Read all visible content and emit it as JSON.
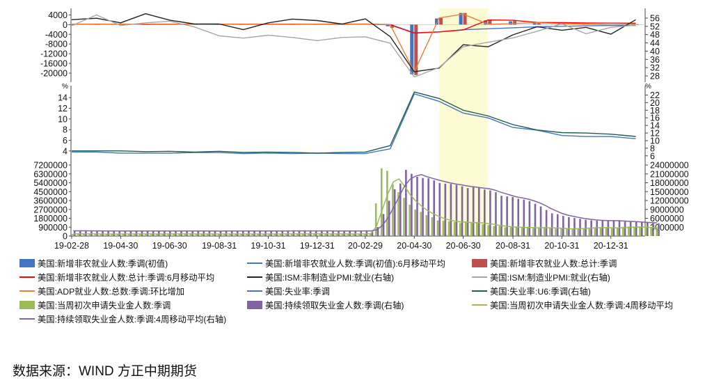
{
  "chart_data": {
    "type": "combo",
    "x_dates": [
      "19-02-28",
      "19-03-31",
      "19-04-30",
      "19-05-31",
      "19-06-30",
      "19-07-31",
      "19-08-31",
      "19-09-30",
      "19-10-31",
      "19-11-30",
      "19-12-31",
      "20-01-31",
      "20-02-29",
      "20-03-31",
      "20-04-30",
      "20-05-31",
      "20-06-30",
      "20-07-31",
      "20-08-31",
      "20-09-30",
      "20-10-31",
      "20-11-30",
      "20-12-31",
      "21-01-31"
    ],
    "x_tick_labels": [
      "19-02-28",
      "19-04-30",
      "19-06-30",
      "19-08-31",
      "19-10-31",
      "19-12-31",
      "20-02-29",
      "20-04-30",
      "20-06-30",
      "20-08-31",
      "20-10-31",
      "20-12-31"
    ],
    "shaded_period": [
      "20-05-31",
      "20-07-31"
    ],
    "panel1": {
      "left_ticks": [
        "4000",
        "0",
        "-4000",
        "-8000",
        "-12000",
        "-16000",
        "-20000"
      ],
      "right_ticks": [
        "56",
        "52",
        "48",
        "44",
        "40",
        "36",
        "32",
        "28"
      ],
      "left_range": [
        -22000,
        4400
      ],
      "right_range": [
        27,
        58
      ],
      "series": [
        {
          "name": "美国:新增非农就业人数:季调(初值)",
          "type": "bar",
          "axis": "left",
          "color": "#4472c4",
          "values": [
            20,
            196,
            263,
            75,
            224,
            164,
            130,
            136,
            128,
            266,
            145,
            225,
            273,
            -701,
            -20500,
            2509,
            4800,
            1763,
            1371,
            661,
            638,
            245,
            -140,
            49
          ]
        },
        {
          "name": "美国:新增非农就业人数:总计:季调",
          "type": "bar",
          "axis": "left",
          "color": "#c0504d",
          "values": [
            1,
            147,
            216,
            62,
            178,
            194,
            168,
            180,
            156,
            256,
            184,
            214,
            251,
            -1373,
            -20787,
            2725,
            4781,
            1761,
            1489,
            672,
            610,
            336,
            -227,
            166
          ]
        },
        {
          "name": "美国:新增非农就业人数:季调(初值):6月移动平均",
          "type": "line",
          "axis": "left",
          "color": "#4472c4",
          "values": [
            185,
            170,
            162,
            150,
            160,
            155,
            165,
            160,
            158,
            172,
            170,
            175,
            200,
            40,
            -3400,
            -3000,
            -2100,
            -1700,
            -1300,
            -900,
            -700,
            -500,
            -400,
            -350
          ]
        },
        {
          "name": "美国:新增非农就业人数:总计:季调:6月移动平均",
          "type": "line",
          "axis": "left",
          "color": "#ff0000",
          "values": [
            190,
            180,
            170,
            160,
            165,
            160,
            170,
            165,
            160,
            175,
            180,
            182,
            205,
            -110,
            -3500,
            -3000,
            -2200,
            1900,
            1780,
            900,
            800,
            700,
            600,
            580
          ]
        },
        {
          "name": "美国:ADP就业人数:总数:季调:环比增加",
          "type": "line",
          "axis": "left",
          "color": "#ed7d31",
          "values": [
            183,
            129,
            275,
            27,
            102,
            156,
            195,
            135,
            125,
            67,
            202,
            291,
            183,
            -27,
            -19500,
            2760,
            4314,
            167,
            428,
            749,
            365,
            307,
            -123,
            174
          ]
        },
        {
          "name": "美国:ISM:非制造业PMI:就业(右轴)",
          "type": "line",
          "axis": "right",
          "color": "#222222",
          "values": [
            55.2,
            55.9,
            53.7,
            58.1,
            55.0,
            53.1,
            53.1,
            50.4,
            53.7,
            55.5,
            54.8,
            53.1,
            55.6,
            47.0,
            30.0,
            31.8,
            43.1,
            42.1,
            47.9,
            51.8,
            50.1,
            51.5,
            48.2,
            55.2
          ]
        },
        {
          "name": "美国:ISM:制造业PMI:就业(右轴)",
          "type": "line",
          "axis": "right",
          "color": "#a5a5a5",
          "values": [
            52.3,
            57.5,
            52.4,
            53.7,
            54.5,
            51.7,
            47.4,
            46.3,
            47.7,
            46.6,
            45.1,
            46.6,
            46.9,
            43.8,
            27.5,
            32.1,
            42.1,
            44.3,
            46.4,
            49.6,
            53.2,
            48.4,
            51.5,
            52.6
          ]
        }
      ]
    },
    "panel2": {
      "left_unit": "%",
      "right_unit": "%",
      "left_ticks": [
        "14",
        "12",
        "10",
        "8",
        "6",
        "4"
      ],
      "right_ticks": [
        "22",
        "20",
        "18",
        "16",
        "14",
        "12",
        "10",
        "8",
        "6"
      ],
      "left_range": [
        2.8,
        15.2
      ],
      "right_range": [
        5.6,
        23.0
      ],
      "series": [
        {
          "name": "美国:失业率:季调",
          "type": "line",
          "axis": "left",
          "color": "#4472c4",
          "values": [
            3.8,
            3.8,
            3.6,
            3.6,
            3.6,
            3.7,
            3.7,
            3.5,
            3.6,
            3.5,
            3.6,
            3.5,
            3.5,
            4.4,
            14.7,
            13.3,
            11.1,
            10.2,
            8.4,
            7.9,
            6.9,
            6.7,
            6.7,
            6.3
          ]
        },
        {
          "name": "美国:失业率:U6:季调(右轴)",
          "type": "line",
          "axis": "right",
          "color": "#1f5c52",
          "values": [
            7.3,
            7.3,
            7.3,
            7.1,
            7.2,
            7.0,
            7.2,
            6.9,
            7.0,
            6.9,
            6.7,
            6.9,
            7.0,
            8.7,
            22.8,
            21.1,
            18.0,
            16.5,
            14.2,
            12.8,
            12.1,
            12.0,
            11.7,
            11.1
          ]
        }
      ]
    },
    "panel3": {
      "left_ticks": [
        "7200000",
        "6300000",
        "5400000",
        "4500000",
        "3600000",
        "2700000",
        "1800000",
        "900000",
        "0"
      ],
      "right_ticks": [
        "24000000",
        "21000000",
        "18000000",
        "15000000",
        "12000000",
        "9000000",
        "6000000",
        "3000000"
      ],
      "left_range": [
        0,
        7200000
      ],
      "right_range": [
        0,
        24000000
      ],
      "series": [
        {
          "name": "美国:当周初次申请失业金人数:季调",
          "type": "bar",
          "axis": "left",
          "color": "#9bbb59"
        },
        {
          "name": "美国:持续领取失业金人数:季调(右轴)",
          "type": "bar",
          "axis": "right",
          "color": "#8064a2"
        },
        {
          "name": "美国:当周初次申请失业金人数:季调:4周移动平均",
          "type": "line",
          "axis": "left",
          "color": "#9bbb59"
        },
        {
          "name": "美国:持续领取失业金人数:季调:4周移动平均(右轴)",
          "type": "line",
          "axis": "right",
          "color": "#7f62a9"
        }
      ],
      "weekly_initial_claims": [
        220000,
        225000,
        215000,
        212000,
        211000,
        208000,
        200000,
        205000,
        214000,
        221000,
        218000,
        226000,
        215000,
        209000,
        212000,
        215000,
        216000,
        222000,
        218000,
        221000,
        216000,
        209000,
        212000,
        211000,
        215000,
        213000,
        219000,
        211000,
        214000,
        211000,
        208000,
        205000,
        212000,
        214000,
        217000,
        213000,
        209000,
        218000,
        223000,
        221000,
        216000,
        226000,
        233000,
        230000,
        219000,
        214000,
        221000,
        216000,
        211000,
        206000,
        216000,
        219000,
        230000,
        282000,
        3307000,
        6867000,
        6615000,
        5237000,
        4442000,
        3867000,
        3176000,
        2687000,
        2446000,
        2126000,
        1897000,
        1566000,
        1542000,
        1482000,
        1427000,
        1314000,
        1413000,
        1307000,
        1422000,
        1191000,
        1106000,
        1006000,
        1011000,
        884000,
        893000,
        881000,
        860000,
        866000,
        804000,
        837000,
        898000,
        787000,
        751000,
        742000,
        711000,
        748000,
        778000,
        787000,
        853000,
        892000,
        885000,
        803000,
        787000,
        842000,
        926000,
        965000,
        900000,
        914000,
        847000,
        812000,
        779000
      ],
      "continuing_claims": [
        1770000,
        1750000,
        1760000,
        1740000,
        1730000,
        1720000,
        1700000,
        1690000,
        1700000,
        1720000,
        1710000,
        1700000,
        1690000,
        1700000,
        1690000,
        1680000,
        1700000,
        1710000,
        1700000,
        1690000,
        1680000,
        1690000,
        1700000,
        1680000,
        1670000,
        1680000,
        1690000,
        1700000,
        1700000,
        1710000,
        1690000,
        1680000,
        1690000,
        1700000,
        1720000,
        1730000,
        1720000,
        1710000,
        1740000,
        1750000,
        1730000,
        1720000,
        1750000,
        1740000,
        1730000,
        1720000,
        1730000,
        1720000,
        1710000,
        1720000,
        1730000,
        1720000,
        1750000,
        1780000,
        3029000,
        7446000,
        11914000,
        15819000,
        17756000,
        22377000,
        21000000,
        20000000,
        19600000,
        19500000,
        18800000,
        17900000,
        17700000,
        17600000,
        17300000,
        16800000,
        16200000,
        16500000,
        16400000,
        15700000,
        15400000,
        14800000,
        13600000,
        13400000,
        13200000,
        12600000,
        12300000,
        11800000,
        10900000,
        10000000,
        8800000,
        7700000,
        7400000,
        6800000,
        6400000,
        6100000,
        5800000,
        5500000,
        5300000,
        5200000,
        5300000,
        5200000,
        5100000,
        5100000,
        4900000,
        4800000,
        4700000,
        4600000,
        4500000,
        4400000,
        4300000
      ]
    }
  },
  "legend": [
    {
      "label": "美国:新增非农就业人数:季调(初值)",
      "kind": "bar",
      "color": "#4472c4"
    },
    {
      "label": "美国:新增非农就业人数:季调(初值):6月移动平均",
      "kind": "line",
      "color": "#4472c4"
    },
    {
      "label": "美国:新增非农就业人数:总计:季调",
      "kind": "bar",
      "color": "#c0504d"
    },
    {
      "label": "美国:新增非农就业人数:总计:季调:6月移动平均",
      "kind": "line",
      "color": "#ff0000"
    },
    {
      "label": "美国:ISM:非制造业PMI:就业(右轴)",
      "kind": "line",
      "color": "#222222"
    },
    {
      "label": "美国:ISM:制造业PMI:就业(右轴)",
      "kind": "line",
      "color": "#a5a5a5"
    },
    {
      "label": "美国:ADP就业人数:总数:季调:环比增加",
      "kind": "line",
      "color": "#ed7d31"
    },
    {
      "label": "美国:失业率:季调",
      "kind": "line",
      "color": "#4472c4"
    },
    {
      "label": "美国:失业率:U6:季调(右轴)",
      "kind": "line",
      "color": "#1f5c52"
    },
    {
      "label": "美国:当周初次申请失业金人数:季调",
      "kind": "bar",
      "color": "#9bbb59"
    },
    {
      "label": "美国:持续领取失业金人数:季调(右轴)",
      "kind": "bar",
      "color": "#8064a2"
    },
    {
      "label": "美国:当周初次申请失业金人数:季调:4周移动平均",
      "kind": "line",
      "color": "#9bbb59"
    },
    {
      "label": "美国:持续领取失业金人数:季调:4周移动平均(右轴)",
      "kind": "line",
      "color": "#7f62a9"
    }
  ],
  "source_note": "数据来源：WIND  方正中期期货"
}
